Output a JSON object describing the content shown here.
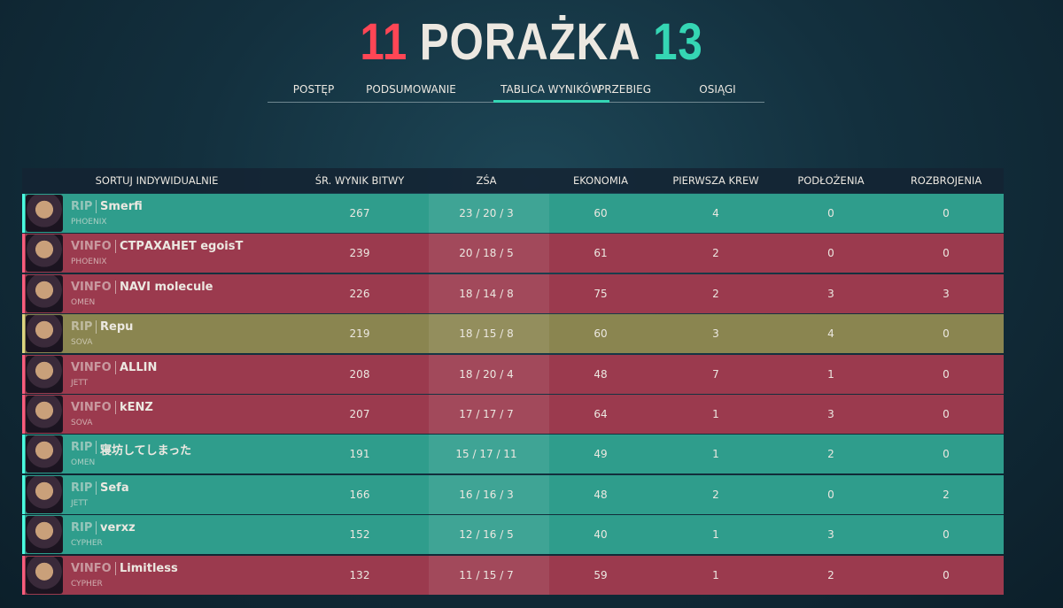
{
  "header": {
    "score_left": "11",
    "result": "PORAŻKA",
    "score_right": "13"
  },
  "tabs": {
    "items": [
      "POSTĘP",
      "PODSUMOWANIE",
      "TABLICA WYNIKÓW",
      "PRZEBIEG",
      "OSIĄGI"
    ],
    "active": 2
  },
  "table": {
    "columns": [
      "SORTUJ INDYWIDUALNIE",
      "ŚR. WYNIK BITWY",
      "ZŚA",
      "EKONOMIA",
      "PIERWSZA KREW",
      "PODŁOŻENIA",
      "ROZBROJENIA"
    ],
    "rows": [
      {
        "tag": "RIP",
        "name": "Smerfi",
        "agent": "PHOENIX",
        "score": 267,
        "kda": "23 / 20 / 3",
        "economy": 60,
        "first_bloods": 4,
        "plants": 0,
        "defuses": 0,
        "color": "#2f9d8c"
      },
      {
        "tag": "VINFO",
        "name": "СТРАХАНЕТ egoisT",
        "agent": "PHOENIX",
        "score": 239,
        "kda": "20 / 18 / 5",
        "economy": 61,
        "first_bloods": 2,
        "plants": 0,
        "defuses": 0,
        "color": "#9b3a4e"
      },
      {
        "tag": "VINFO",
        "name": "NAVI molecule",
        "agent": "OMEN",
        "score": 226,
        "kda": "18 / 14 / 8",
        "economy": 75,
        "first_bloods": 2,
        "plants": 3,
        "defuses": 3,
        "color": "#9b3a4e"
      },
      {
        "tag": "RIP",
        "name": "Repu",
        "agent": "SOVA",
        "score": 219,
        "kda": "18 / 15 / 8",
        "economy": 60,
        "first_bloods": 3,
        "plants": 4,
        "defuses": 0,
        "color": "#8a8550"
      },
      {
        "tag": "VINFO",
        "name": "ALLIN",
        "agent": "JETT",
        "score": 208,
        "kda": "18 / 20 / 4",
        "economy": 48,
        "first_bloods": 7,
        "plants": 1,
        "defuses": 0,
        "color": "#9b3a4e"
      },
      {
        "tag": "VINFO",
        "name": "kENZ",
        "agent": "SOVA",
        "score": 207,
        "kda": "17 / 17 / 7",
        "economy": 64,
        "first_bloods": 1,
        "plants": 3,
        "defuses": 0,
        "color": "#9b3a4e"
      },
      {
        "tag": "RIP",
        "name": "寝坊してしまった",
        "agent": "OMEN",
        "score": 191,
        "kda": "15 / 17 / 11",
        "economy": 49,
        "first_bloods": 1,
        "plants": 2,
        "defuses": 0,
        "color": "#2f9d8c"
      },
      {
        "tag": "RIP",
        "name": "Sefa",
        "agent": "JETT",
        "score": 166,
        "kda": "16 / 16 / 3",
        "economy": 48,
        "first_bloods": 2,
        "plants": 0,
        "defuses": 2,
        "color": "#2f9d8c"
      },
      {
        "tag": "RIP",
        "name": "verxz",
        "agent": "CYPHER",
        "score": 152,
        "kda": "12 / 16 / 5",
        "economy": 40,
        "first_bloods": 1,
        "plants": 3,
        "defuses": 0,
        "color": "#2f9d8c"
      },
      {
        "tag": "VINFO",
        "name": "Limitless",
        "agent": "CYPHER",
        "score": 132,
        "kda": "11 / 15 / 7",
        "economy": 59,
        "first_bloods": 1,
        "plants": 2,
        "defuses": 0,
        "color": "#9b3a4e"
      }
    ]
  }
}
